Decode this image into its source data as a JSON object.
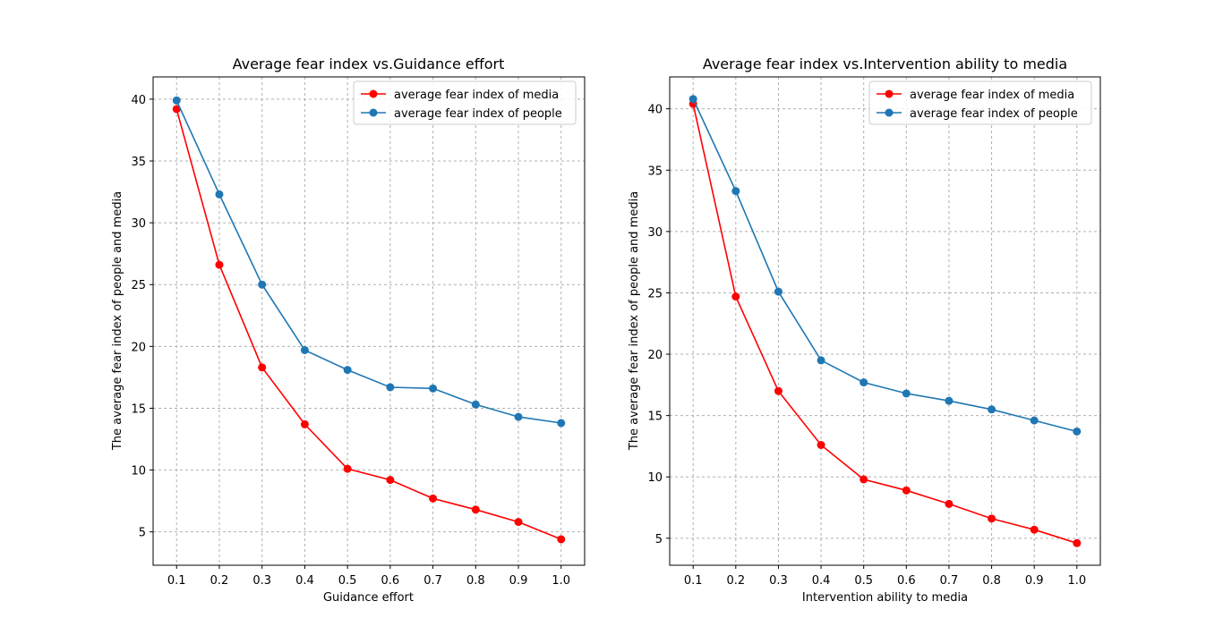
{
  "chart_data": [
    {
      "type": "line",
      "title": "Average fear index vs.Guidance effort",
      "xlabel": "Guidance effort",
      "ylabel": "The average fear index of people and media",
      "x": [
        0.1,
        0.2,
        0.3,
        0.4,
        0.5,
        0.6,
        0.7,
        0.8,
        0.9,
        1.0
      ],
      "xticks": [
        "0.1",
        "0.2",
        "0.3",
        "0.4",
        "0.5",
        "0.6",
        "0.7",
        "0.8",
        "0.9",
        "1.0"
      ],
      "yticks": [
        5,
        10,
        15,
        20,
        25,
        30,
        35,
        40
      ],
      "xlim": [
        0.045,
        1.055
      ],
      "ylim": [
        2.3,
        41.8
      ],
      "grid": true,
      "legend_position": "top-right",
      "series": [
        {
          "name": "average fear index of media",
          "color": "#ff0000",
          "values": [
            39.2,
            26.6,
            18.3,
            13.7,
            10.1,
            9.2,
            7.7,
            6.8,
            5.8,
            4.4
          ]
        },
        {
          "name": "average fear index of people",
          "color": "#1f77b4",
          "values": [
            39.9,
            32.3,
            25.0,
            19.7,
            18.1,
            16.7,
            16.6,
            15.3,
            14.3,
            13.8
          ]
        }
      ]
    },
    {
      "type": "line",
      "title": "Average fear index vs.Intervention ability to media",
      "xlabel": "Intervention ability to media",
      "ylabel": "The average fear index of people and media",
      "x": [
        0.1,
        0.2,
        0.3,
        0.4,
        0.5,
        0.6,
        0.7,
        0.8,
        0.9,
        1.0
      ],
      "xticks": [
        "0.1",
        "0.2",
        "0.3",
        "0.4",
        "0.5",
        "0.6",
        "0.7",
        "0.8",
        "0.9",
        "1.0"
      ],
      "yticks": [
        5,
        10,
        15,
        20,
        25,
        30,
        35,
        40
      ],
      "xlim": [
        0.045,
        1.055
      ],
      "ylim": [
        2.8,
        42.6
      ],
      "grid": true,
      "legend_position": "top-right",
      "series": [
        {
          "name": "average fear index of media",
          "color": "#ff0000",
          "values": [
            40.4,
            24.7,
            17.0,
            12.6,
            9.8,
            8.9,
            7.8,
            6.6,
            5.7,
            4.6
          ]
        },
        {
          "name": "average fear index of people",
          "color": "#1f77b4",
          "values": [
            40.8,
            33.3,
            25.1,
            19.5,
            17.7,
            16.8,
            16.2,
            15.5,
            14.6,
            13.7
          ]
        }
      ]
    }
  ]
}
